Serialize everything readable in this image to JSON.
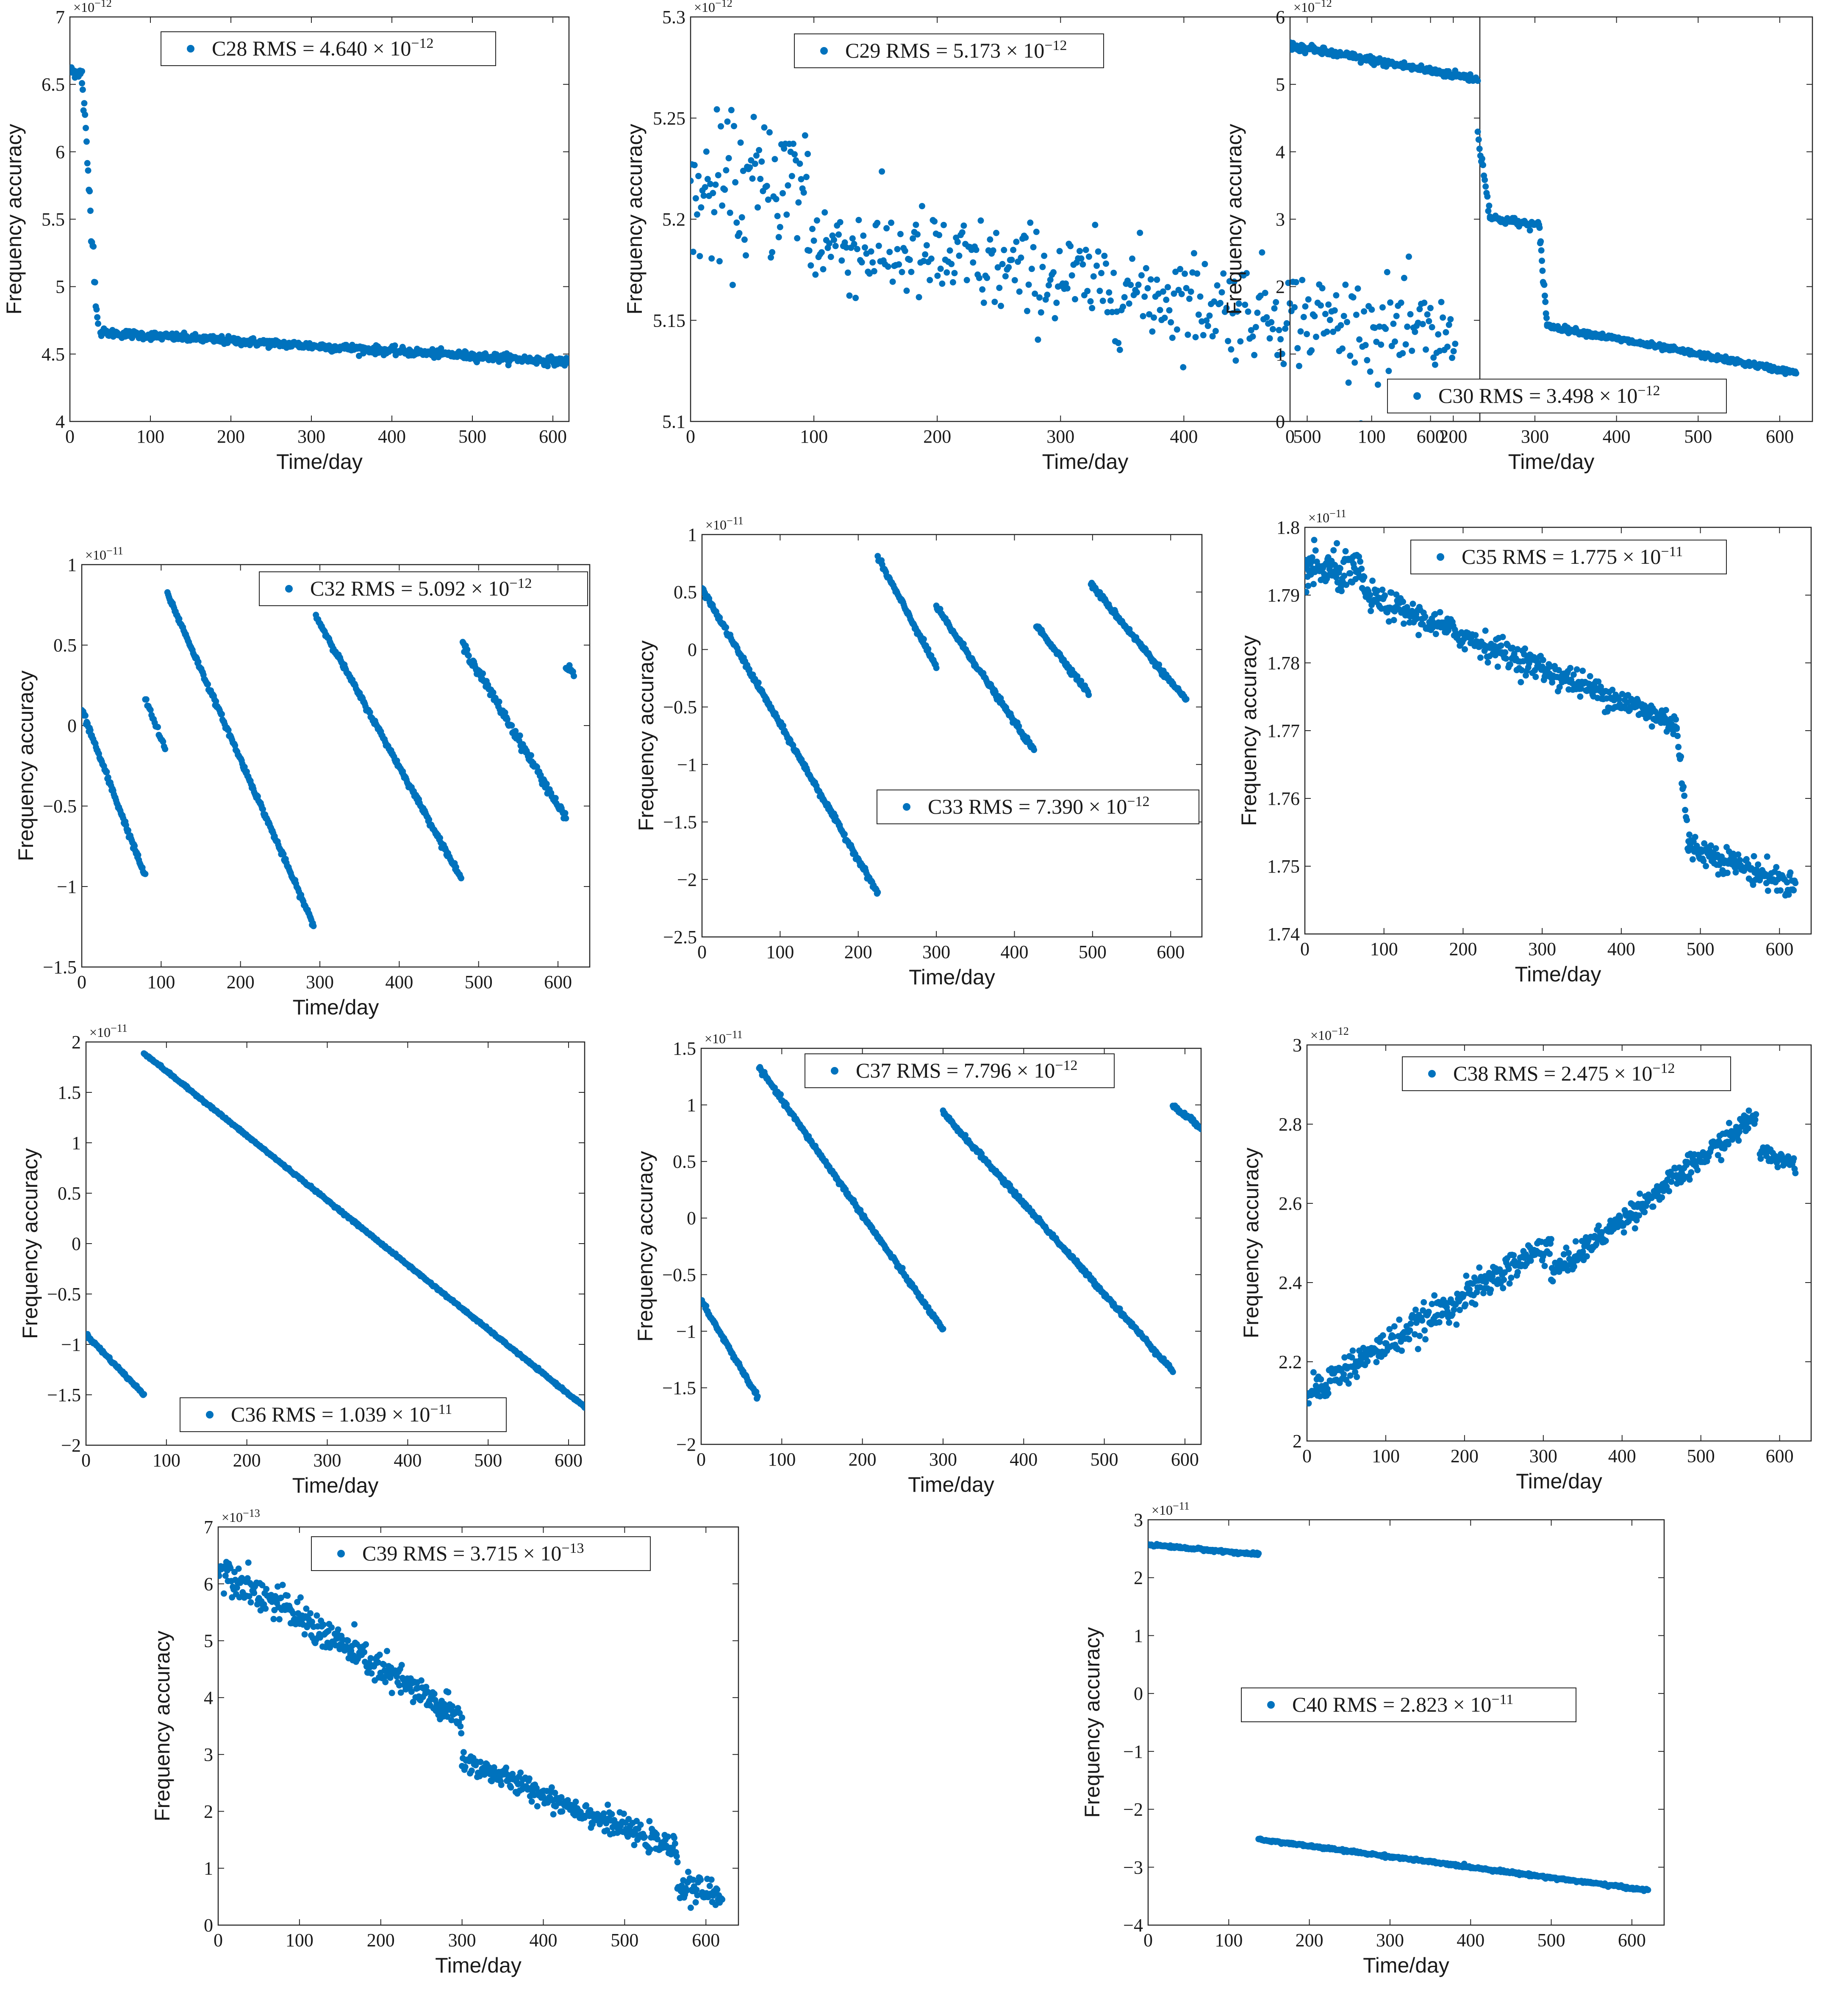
{
  "figure": {
    "x_axis_label": "Time/day",
    "y_axis_label": "Frequency accuracy",
    "marker_color": "#0072BD"
  },
  "chart_data": [
    {
      "type": "scatter",
      "id": "C28",
      "legend": "C28 RMS = 4.640 × 10",
      "legend_exp": "−12",
      "legend_position": "top-right",
      "exponent_label": "×10",
      "exponent_value": "−12",
      "xlim": [
        0,
        620
      ],
      "ylim": [
        4,
        7
      ],
      "xticks": [
        0,
        100,
        200,
        300,
        400,
        500,
        600
      ],
      "xtick_labels": [
        "0",
        "100",
        "200",
        "300",
        "400",
        "500",
        "600"
      ],
      "yticks": [
        4,
        4.5,
        5,
        5.5,
        6,
        6.5,
        7
      ],
      "ytick_labels": [
        "4",
        "4.5",
        "5",
        "5.5",
        "6",
        "6.5",
        "7"
      ],
      "segments": [
        {
          "x0": 0,
          "y0": 6.6,
          "x1": 15,
          "y1": 6.58,
          "n": 25,
          "noise": 0.02
        },
        {
          "x0": 15,
          "y0": 6.55,
          "x1": 35,
          "y1": 4.7,
          "n": 22,
          "noise": 0.06
        },
        {
          "x0": 38,
          "y0": 4.66,
          "x1": 620,
          "y1": 4.44,
          "n": 550,
          "noise": 0.015
        }
      ]
    },
    {
      "type": "scatter",
      "id": "C29",
      "legend": "C29 RMS = 5.173 × 10",
      "legend_exp": "−12",
      "legend_position": "top-center",
      "exponent_label": "×10",
      "exponent_value": "−12",
      "xlim": [
        0,
        640
      ],
      "ylim": [
        5.1,
        5.3
      ],
      "xticks": [
        0,
        100,
        200,
        300,
        400,
        500,
        600
      ],
      "xtick_labels": [
        "0",
        "100",
        "200",
        "300",
        "400",
        "500",
        "600"
      ],
      "yticks": [
        5.1,
        5.15,
        5.2,
        5.25,
        5.3
      ],
      "ytick_labels": [
        "5.1",
        "5.15",
        "5.2",
        "5.25",
        "5.3"
      ],
      "segments": [
        {
          "x0": 0,
          "y0": 5.21,
          "x1": 95,
          "y1": 5.22,
          "n": 90,
          "noise": 0.018
        },
        {
          "x0": 95,
          "y0": 5.19,
          "x1": 620,
          "y1": 5.14,
          "n": 420,
          "noise": 0.012
        }
      ]
    },
    {
      "type": "scatter",
      "id": "C30",
      "legend": "C30 RMS = 3.498 × 10",
      "legend_exp": "−12",
      "legend_position": "bottom-right",
      "exponent_label": "×10",
      "exponent_value": "−12",
      "xlim": [
        0,
        640
      ],
      "ylim": [
        0,
        6
      ],
      "xticks": [
        0,
        100,
        200,
        300,
        400,
        500,
        600
      ],
      "xtick_labels": [
        "0",
        "100",
        "200",
        "300",
        "400",
        "500",
        "600"
      ],
      "yticks": [
        0,
        1,
        2,
        3,
        4,
        5,
        6
      ],
      "ytick_labels": [
        "0",
        "1",
        "2",
        "3",
        "4",
        "5",
        "6"
      ],
      "segments": [
        {
          "x0": 0,
          "y0": 5.57,
          "x1": 230,
          "y1": 5.08,
          "n": 200,
          "noise": 0.03
        },
        {
          "x0": 230,
          "y0": 4.25,
          "x1": 245,
          "y1": 3.1,
          "n": 15,
          "noise": 0.05
        },
        {
          "x0": 245,
          "y0": 3.02,
          "x1": 305,
          "y1": 2.9,
          "n": 55,
          "noise": 0.03
        },
        {
          "x0": 305,
          "y0": 2.9,
          "x1": 315,
          "y1": 1.45,
          "n": 15,
          "noise": 0.05
        },
        {
          "x0": 315,
          "y0": 1.42,
          "x1": 620,
          "y1": 0.72,
          "n": 280,
          "noise": 0.02
        }
      ]
    },
    {
      "type": "scatter",
      "id": "C32",
      "legend": "C32 RMS = 5.092 × 10",
      "legend_exp": "−12",
      "legend_position": "top-right",
      "exponent_label": "×10",
      "exponent_value": "−11",
      "xlim": [
        0,
        640
      ],
      "ylim": [
        -1.5,
        1
      ],
      "xticks": [
        0,
        100,
        200,
        300,
        400,
        500,
        600
      ],
      "xtick_labels": [
        "0",
        "100",
        "200",
        "300",
        "400",
        "500",
        "600"
      ],
      "yticks": [
        -1.5,
        -1,
        -0.5,
        0,
        0.5,
        1
      ],
      "ytick_labels": [
        "−1.5",
        "−1",
        "−0.5",
        "0",
        "0.5",
        "1"
      ],
      "segments": [
        {
          "x0": 0,
          "y0": 0.1,
          "x1": 80,
          "y1": -0.94,
          "n": 90,
          "noise": 0.01
        },
        {
          "x0": 80,
          "y0": 0.17,
          "x1": 105,
          "y1": -0.15,
          "n": 20,
          "noise": 0.01
        },
        {
          "x0": 108,
          "y0": 0.82,
          "x1": 292,
          "y1": -1.24,
          "n": 200,
          "noise": 0.008
        },
        {
          "x0": 295,
          "y0": 0.68,
          "x1": 478,
          "y1": -0.95,
          "n": 200,
          "noise": 0.008
        },
        {
          "x0": 480,
          "y0": 0.5,
          "x1": 610,
          "y1": -0.58,
          "n": 140,
          "noise": 0.015
        },
        {
          "x0": 610,
          "y0": 0.36,
          "x1": 620,
          "y1": 0.33,
          "n": 10,
          "noise": 0.01
        }
      ]
    },
    {
      "type": "scatter",
      "id": "C33",
      "legend": "C33 RMS = 7.390 × 10",
      "legend_exp": "−12",
      "legend_position": "center-right",
      "exponent_label": "×10",
      "exponent_value": "−11",
      "xlim": [
        0,
        640
      ],
      "ylim": [
        -2.5,
        1
      ],
      "xticks": [
        0,
        100,
        200,
        300,
        400,
        500,
        600
      ],
      "xtick_labels": [
        "0",
        "100",
        "200",
        "300",
        "400",
        "500",
        "600"
      ],
      "yticks": [
        -2.5,
        -2,
        -1.5,
        -1,
        -0.5,
        0,
        0.5,
        1
      ],
      "ytick_labels": [
        "−2.5",
        "−2",
        "−1.5",
        "−1",
        "−0.5",
        "0",
        "0.5",
        "1"
      ],
      "segments": [
        {
          "x0": 0,
          "y0": 0.53,
          "x1": 225,
          "y1": -2.12,
          "n": 250,
          "noise": 0.012
        },
        {
          "x0": 225,
          "y0": 0.8,
          "x1": 300,
          "y1": -0.15,
          "n": 80,
          "noise": 0.012
        },
        {
          "x0": 300,
          "y0": 0.37,
          "x1": 425,
          "y1": -0.88,
          "n": 130,
          "noise": 0.012
        },
        {
          "x0": 428,
          "y0": 0.21,
          "x1": 495,
          "y1": -0.38,
          "n": 70,
          "noise": 0.012
        },
        {
          "x0": 498,
          "y0": 0.57,
          "x1": 620,
          "y1": -0.45,
          "n": 130,
          "noise": 0.012
        }
      ]
    },
    {
      "type": "scatter",
      "id": "C35",
      "legend": "C35 RMS = 1.775 × 10",
      "legend_exp": "−11",
      "legend_position": "top-right",
      "exponent_label": "×10",
      "exponent_value": "−11",
      "xlim": [
        0,
        640
      ],
      "ylim": [
        1.74,
        1.8
      ],
      "xticks": [
        0,
        100,
        200,
        300,
        400,
        500,
        600
      ],
      "xtick_labels": [
        "0",
        "100",
        "200",
        "300",
        "400",
        "500",
        "600"
      ],
      "yticks": [
        1.74,
        1.75,
        1.76,
        1.77,
        1.78,
        1.79,
        1.8
      ],
      "ytick_labels": [
        "1.74",
        "1.75",
        "1.76",
        "1.77",
        "1.78",
        "1.79",
        "1.8"
      ],
      "segments": [
        {
          "x0": 0,
          "y0": 1.794,
          "x1": 75,
          "y1": 1.793,
          "n": 90,
          "noise": 0.0015
        },
        {
          "x0": 75,
          "y0": 1.79,
          "x1": 470,
          "y1": 1.771,
          "n": 380,
          "noise": 0.001
        },
        {
          "x0": 470,
          "y0": 1.771,
          "x1": 485,
          "y1": 1.753,
          "n": 15,
          "noise": 0.0015
        },
        {
          "x0": 485,
          "y0": 1.753,
          "x1": 620,
          "y1": 1.747,
          "n": 130,
          "noise": 0.001
        }
      ]
    },
    {
      "type": "scatter",
      "id": "C36",
      "legend": "C36 RMS = 1.039 × 10",
      "legend_exp": "−11",
      "legend_position": "bottom-center",
      "exponent_label": "×10",
      "exponent_value": "−11",
      "xlim": [
        0,
        620
      ],
      "ylim": [
        -2,
        2
      ],
      "xticks": [
        0,
        100,
        200,
        300,
        400,
        500,
        600
      ],
      "xtick_labels": [
        "0",
        "100",
        "200",
        "300",
        "400",
        "500",
        "600"
      ],
      "yticks": [
        -2,
        -1.5,
        -1,
        -0.5,
        0,
        0.5,
        1,
        1.5,
        2
      ],
      "ytick_labels": [
        "−2",
        "−1.5",
        "−1",
        "−0.5",
        "0",
        "0.5",
        "1",
        "1.5",
        "2"
      ],
      "segments": [
        {
          "x0": 0,
          "y0": -0.9,
          "x1": 72,
          "y1": -1.5,
          "n": 80,
          "noise": 0.008
        },
        {
          "x0": 72,
          "y0": 1.89,
          "x1": 620,
          "y1": -1.62,
          "n": 600,
          "noise": 0.005
        }
      ]
    },
    {
      "type": "scatter",
      "id": "C37",
      "legend": "C37 RMS = 7.796 × 10",
      "legend_exp": "−12",
      "legend_position": "top-center",
      "exponent_label": "×10",
      "exponent_value": "−11",
      "xlim": [
        0,
        620
      ],
      "ylim": [
        -2,
        1.5
      ],
      "xticks": [
        0,
        100,
        200,
        300,
        400,
        500,
        600
      ],
      "xtick_labels": [
        "0",
        "100",
        "200",
        "300",
        "400",
        "500",
        "600"
      ],
      "yticks": [
        -2,
        -1.5,
        -1,
        -0.5,
        0,
        0.5,
        1,
        1.5
      ],
      "ytick_labels": [
        "−2",
        "−1.5",
        "−1",
        "−0.5",
        "0",
        "0.5",
        "1",
        "1.5"
      ],
      "segments": [
        {
          "x0": 0,
          "y0": -0.73,
          "x1": 70,
          "y1": -1.58,
          "n": 80,
          "noise": 0.01
        },
        {
          "x0": 72,
          "y0": 1.33,
          "x1": 300,
          "y1": -0.99,
          "n": 250,
          "noise": 0.01
        },
        {
          "x0": 300,
          "y0": 0.93,
          "x1": 585,
          "y1": -1.35,
          "n": 300,
          "noise": 0.01
        },
        {
          "x0": 585,
          "y0": 0.99,
          "x1": 620,
          "y1": 0.8,
          "n": 40,
          "noise": 0.01
        }
      ]
    },
    {
      "type": "scatter",
      "id": "C38",
      "legend": "C38 RMS = 2.475 × 10",
      "legend_exp": "−12",
      "legend_position": "top-right",
      "exponent_label": "×10",
      "exponent_value": "−12",
      "xlim": [
        0,
        640
      ],
      "ylim": [
        2,
        3
      ],
      "xticks": [
        0,
        100,
        200,
        300,
        400,
        500,
        600
      ],
      "xtick_labels": [
        "0",
        "100",
        "200",
        "300",
        "400",
        "500",
        "600"
      ],
      "yticks": [
        2,
        2.2,
        2.4,
        2.6,
        2.8,
        3
      ],
      "ytick_labels": [
        "2",
        "2.2",
        "2.4",
        "2.6",
        "2.8",
        "3"
      ],
      "segments": [
        {
          "x0": 0,
          "y0": 2.12,
          "x1": 310,
          "y1": 2.5,
          "n": 300,
          "noise": 0.02
        },
        {
          "x0": 310,
          "y0": 2.42,
          "x1": 570,
          "y1": 2.82,
          "n": 260,
          "noise": 0.015
        },
        {
          "x0": 575,
          "y0": 2.73,
          "x1": 620,
          "y1": 2.7,
          "n": 45,
          "noise": 0.01
        }
      ]
    },
    {
      "type": "scatter",
      "id": "C39",
      "legend": "C39 RMS = 3.715 × 10",
      "legend_exp": "−13",
      "legend_position": "top-center",
      "exponent_label": "×10",
      "exponent_value": "−13",
      "xlim": [
        0,
        640
      ],
      "ylim": [
        0,
        7
      ],
      "xticks": [
        0,
        100,
        200,
        300,
        400,
        500,
        600
      ],
      "xtick_labels": [
        "0",
        "100",
        "200",
        "300",
        "400",
        "500",
        "600"
      ],
      "yticks": [
        0,
        1,
        2,
        3,
        4,
        5,
        6,
        7
      ],
      "ytick_labels": [
        "0",
        "1",
        "2",
        "3",
        "4",
        "5",
        "6",
        "7"
      ],
      "segments": [
        {
          "x0": 0,
          "y0": 6.3,
          "x1": 300,
          "y1": 3.6,
          "n": 300,
          "noise": 0.15
        },
        {
          "x0": 300,
          "y0": 2.9,
          "x1": 565,
          "y1": 1.3,
          "n": 270,
          "noise": 0.1
        },
        {
          "x0": 565,
          "y0": 0.7,
          "x1": 620,
          "y1": 0.5,
          "n": 55,
          "noise": 0.12
        }
      ]
    },
    {
      "type": "scatter",
      "id": "C40",
      "legend": "C40 RMS = 2.823 × 10",
      "legend_exp": "−11",
      "legend_position": "center",
      "exponent_label": "×10",
      "exponent_value": "−11",
      "xlim": [
        0,
        640
      ],
      "ylim": [
        -4,
        3
      ],
      "xticks": [
        0,
        100,
        200,
        300,
        400,
        500,
        600
      ],
      "xtick_labels": [
        "0",
        "100",
        "200",
        "300",
        "400",
        "500",
        "600"
      ],
      "yticks": [
        -4,
        -3,
        -2,
        -1,
        0,
        1,
        2,
        3
      ],
      "ytick_labels": [
        "−4",
        "−3",
        "−2",
        "−1",
        "0",
        "1",
        "2",
        "3"
      ],
      "segments": [
        {
          "x0": 0,
          "y0": 2.57,
          "x1": 137,
          "y1": 2.4,
          "n": 140,
          "noise": 0.01
        },
        {
          "x0": 137,
          "y0": -2.52,
          "x1": 620,
          "y1": -3.4,
          "n": 480,
          "noise": 0.01
        }
      ]
    }
  ]
}
